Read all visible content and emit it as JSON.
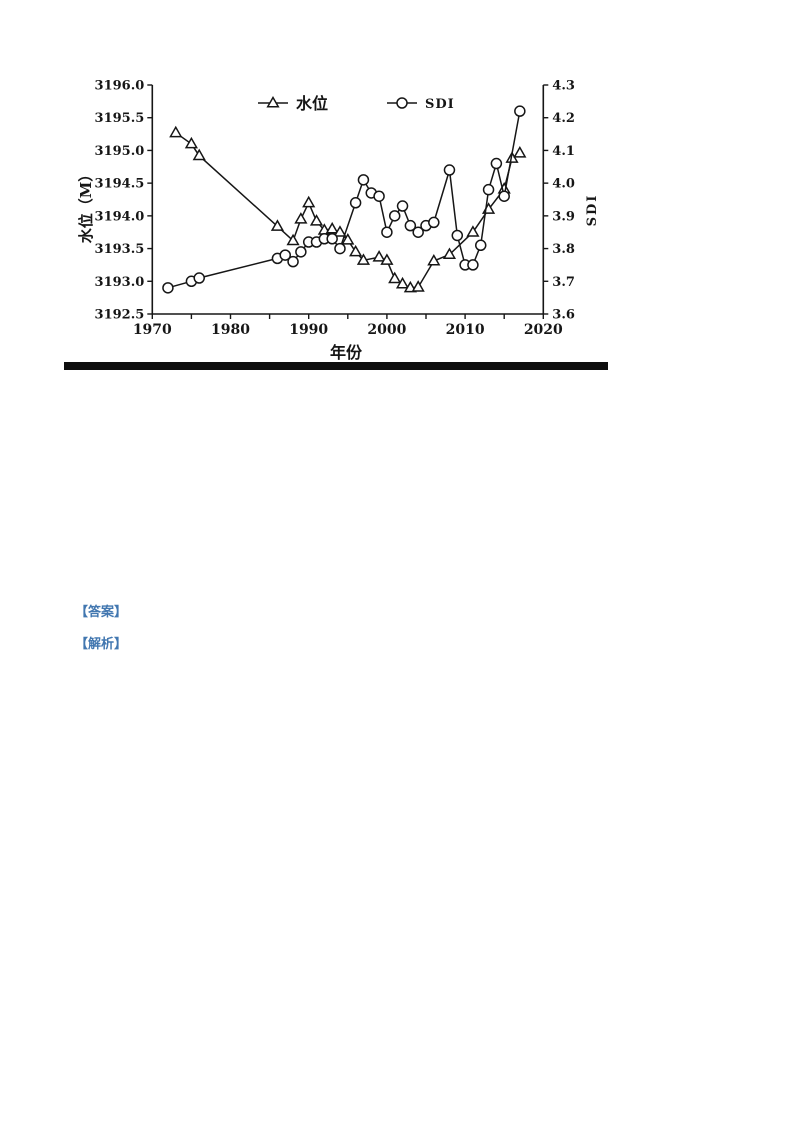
{
  "figure": {
    "xlabel": "年份",
    "ylabel_left": "水位（M）",
    "ylabel_right": "SDI",
    "legend": {
      "series1": "水位",
      "series2": "SDI"
    },
    "line_color": "#161616",
    "marker_fill": "#ffffff"
  },
  "links": {
    "answer": "【答案】",
    "analysis": "【解析】",
    "color": "#4277b0"
  },
  "chart_data": {
    "type": "line",
    "title": "",
    "xlabel": "年份",
    "ylabel_left": "水位（M）",
    "ylabel_right": "SDI",
    "grid": false,
    "legend_position": "top-inside",
    "xlim": [
      1970,
      2020
    ],
    "x_tick_step_minor": 5,
    "x_tick_labels": [
      1970,
      1980,
      1990,
      2000,
      2010,
      2020
    ],
    "ylim_left": [
      3192.5,
      3196.0
    ],
    "y_left_ticks": [
      3192.5,
      3193.0,
      3193.5,
      3194.0,
      3194.5,
      3195.0,
      3195.5,
      3196.0
    ],
    "ylim_right": [
      3.6,
      4.3
    ],
    "y_right_ticks": [
      3.6,
      3.7,
      3.8,
      3.9,
      4.0,
      4.1,
      4.2,
      4.3
    ],
    "series": [
      {
        "name": "水位",
        "axis": "left",
        "marker": "triangle",
        "points": [
          [
            1973,
            3195.27
          ],
          [
            1975,
            3195.1
          ],
          [
            1976,
            3194.92
          ],
          [
            1986,
            3193.84
          ],
          [
            1988,
            3193.62
          ],
          [
            1989,
            3193.95
          ],
          [
            1990,
            3194.2
          ],
          [
            1991,
            3193.92
          ],
          [
            1992,
            3193.78
          ],
          [
            1993,
            3193.8
          ],
          [
            1994,
            3193.75
          ],
          [
            1995,
            3193.63
          ],
          [
            1996,
            3193.45
          ],
          [
            1997,
            3193.32
          ],
          [
            1999,
            3193.37
          ],
          [
            2000,
            3193.32
          ],
          [
            2001,
            3193.04
          ],
          [
            2002,
            3192.96
          ],
          [
            2003,
            3192.9
          ],
          [
            2004,
            3192.91
          ],
          [
            2006,
            3193.31
          ],
          [
            2008,
            3193.41
          ],
          [
            2011,
            3193.75
          ],
          [
            2013,
            3194.1
          ],
          [
            2015,
            3194.41
          ],
          [
            2016,
            3194.88
          ],
          [
            2017,
            3194.96
          ]
        ]
      },
      {
        "name": "SDI",
        "axis": "right",
        "marker": "circle",
        "points": [
          [
            1972,
            3.68
          ],
          [
            1975,
            3.7
          ],
          [
            1976,
            3.71
          ],
          [
            1986,
            3.77
          ],
          [
            1987,
            3.78
          ],
          [
            1988,
            3.76
          ],
          [
            1989,
            3.79
          ],
          [
            1990,
            3.82
          ],
          [
            1991,
            3.82
          ],
          [
            1992,
            3.83
          ],
          [
            1993,
            3.83
          ],
          [
            1994,
            3.8
          ],
          [
            1996,
            3.94
          ],
          [
            1997,
            4.01
          ],
          [
            1998,
            3.97
          ],
          [
            1999,
            3.96
          ],
          [
            2000,
            3.85
          ],
          [
            2001,
            3.9
          ],
          [
            2002,
            3.93
          ],
          [
            2003,
            3.87
          ],
          [
            2004,
            3.85
          ],
          [
            2005,
            3.87
          ],
          [
            2006,
            3.88
          ],
          [
            2008,
            4.04
          ],
          [
            2009,
            3.84
          ],
          [
            2010,
            3.75
          ],
          [
            2011,
            3.75
          ],
          [
            2012,
            3.81
          ],
          [
            2013,
            3.98
          ],
          [
            2014,
            4.06
          ],
          [
            2015,
            3.96
          ],
          [
            2017,
            4.22
          ]
        ]
      }
    ]
  }
}
